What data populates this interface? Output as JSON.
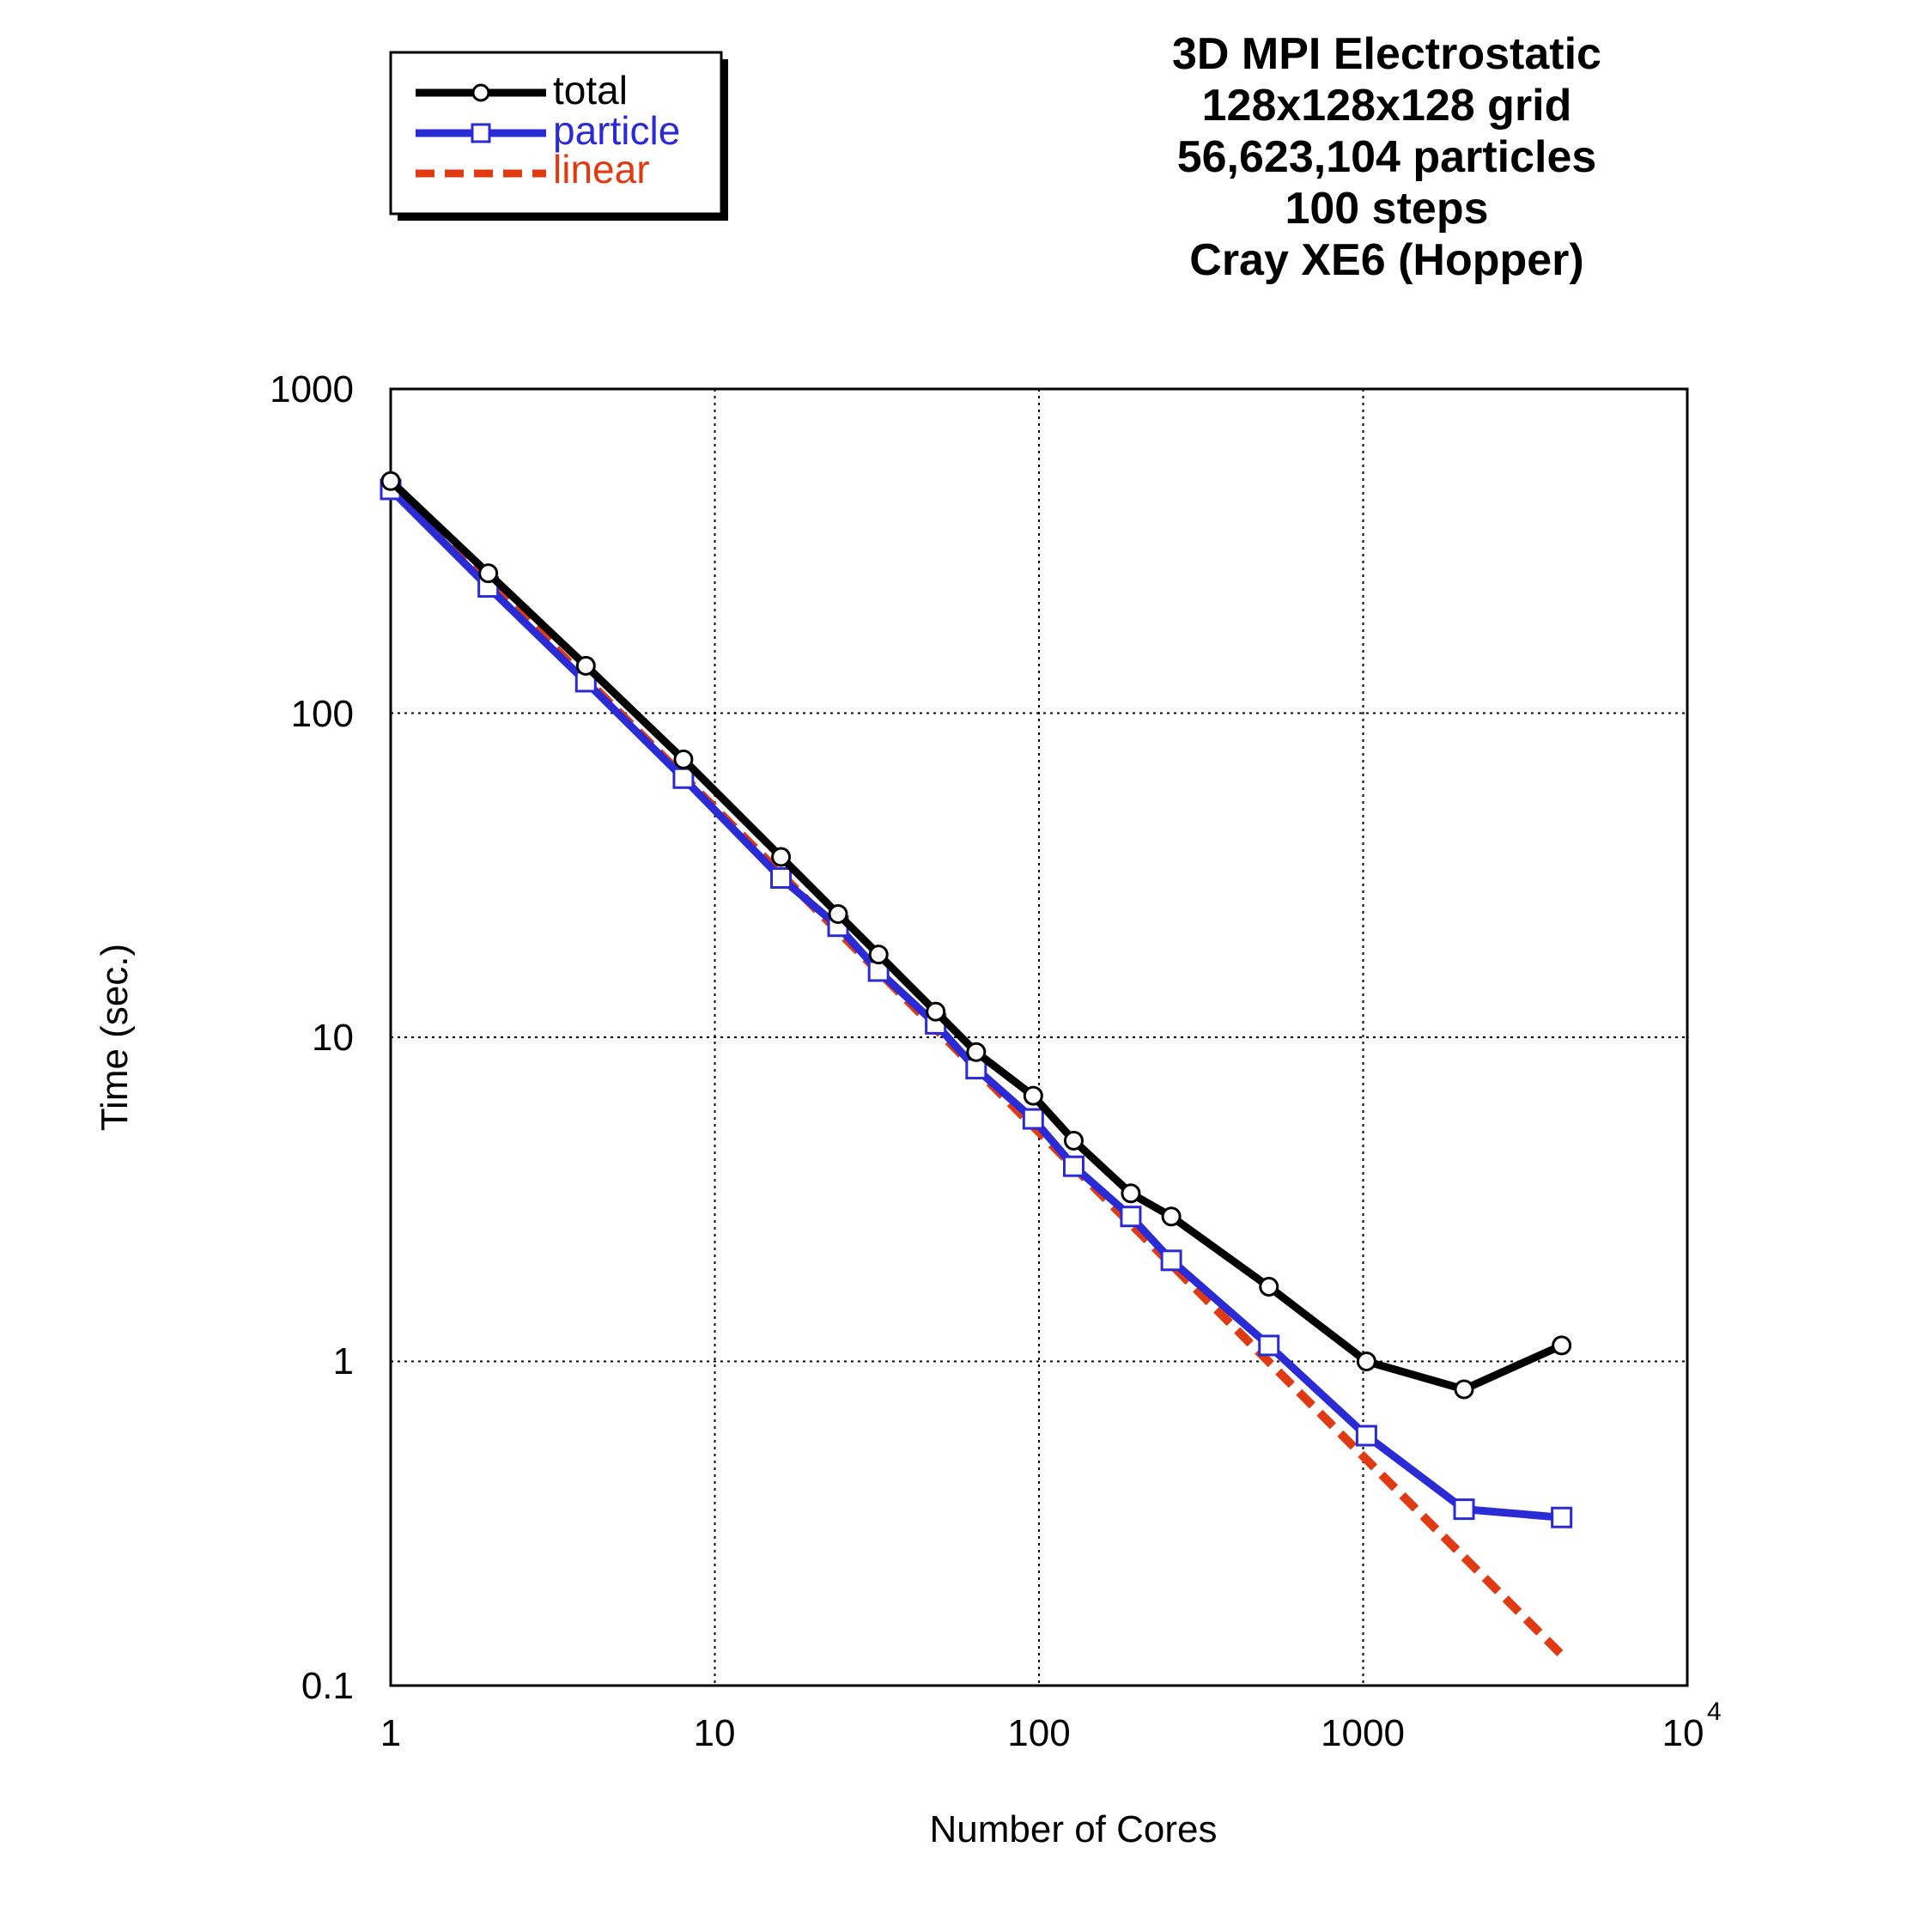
{
  "chart_data": {
    "type": "line",
    "title_lines": [
      "3D MPI Electrostatic",
      "128x128x128 grid",
      "56,623,104 particles",
      "100 steps",
      "Cray XE6 (Hopper)"
    ],
    "xlabel": "Number of Cores",
    "ylabel": "Time (sec.)",
    "xscale": "log",
    "yscale": "log",
    "xlim": [
      1,
      10000
    ],
    "ylim": [
      0.1,
      1000
    ],
    "x_tick_labels": [
      "1",
      "10",
      "100",
      "1000",
      "10"
    ],
    "x_tick_last_exponent": "4",
    "y_tick_labels": [
      "0.1",
      "1",
      "10",
      "100",
      "1000"
    ],
    "grid": true,
    "legend_position": "top-left",
    "series": [
      {
        "name": "total",
        "color": "#000000",
        "marker": "circle",
        "style": "solid",
        "x": [
          1,
          2,
          4,
          8,
          16,
          24,
          32,
          48,
          64,
          96,
          128,
          192,
          256,
          512,
          1024,
          2048,
          4096
        ],
        "y": [
          520,
          270,
          140,
          72,
          36,
          24,
          18,
          12,
          9.0,
          6.6,
          4.8,
          3.3,
          2.8,
          1.7,
          1.0,
          0.82,
          1.12
        ]
      },
      {
        "name": "particle",
        "color": "#2b2bd6",
        "marker": "square",
        "style": "solid",
        "x": [
          1,
          2,
          4,
          8,
          16,
          24,
          32,
          48,
          64,
          96,
          128,
          192,
          256,
          512,
          1024,
          2048,
          4096
        ],
        "y": [
          490,
          245,
          125,
          63,
          31,
          22,
          16,
          11,
          8.0,
          5.6,
          4.0,
          2.8,
          2.05,
          1.12,
          0.59,
          0.35,
          0.33
        ]
      },
      {
        "name": "linear",
        "color": "#e03a12",
        "marker": "none",
        "style": "dashed",
        "x": [
          1,
          4096
        ],
        "y": [
          510,
          0.1245
        ]
      }
    ]
  }
}
